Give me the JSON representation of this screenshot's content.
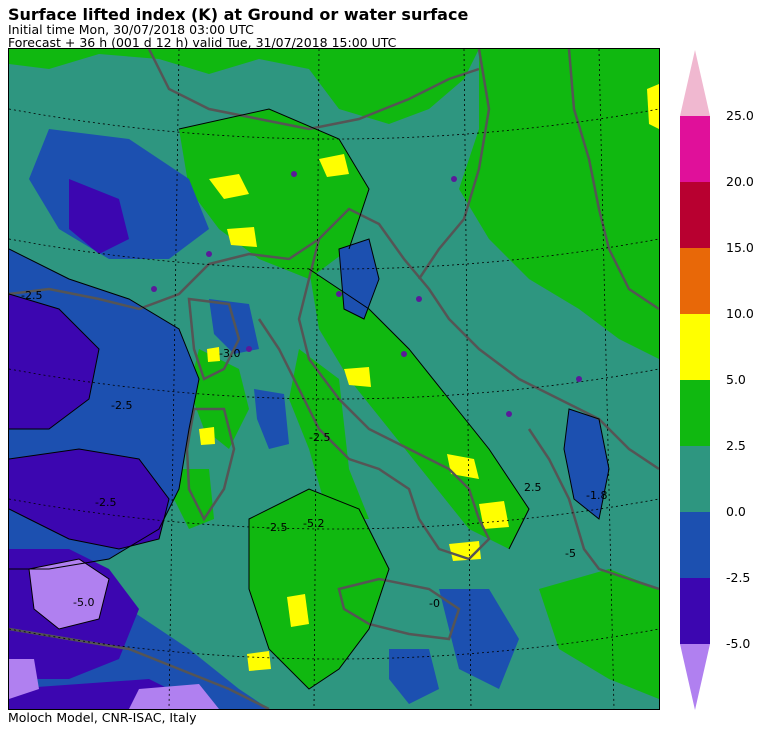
{
  "header": {
    "title": "Surface lifted index (K) at Ground or water surface",
    "initial_time": "Initial time  Mon, 30/07/2018  03:00 UTC",
    "forecast": "Forecast  +  36 h  (001 d 12 h)  valid Tue, 31/07/2018 15:00 UTC"
  },
  "footer": {
    "credit": "Moloch Model, CNR-ISAC, Italy"
  },
  "legend": {
    "bins": [
      {
        "label": "25.0",
        "color": "#f0b8d0"
      },
      {
        "label": "20.0",
        "color": "#e0109a"
      },
      {
        "label": "15.0",
        "color": "#b80030"
      },
      {
        "label": "10.0",
        "color": "#e86808"
      },
      {
        "label": "5.0",
        "color": "#ffff00"
      },
      {
        "label": "2.5",
        "color": "#10b810"
      },
      {
        "label": "0.0",
        "color": "#2e9680"
      },
      {
        "label": "-2.5",
        "color": "#1c50b0"
      },
      {
        "label": "-5.0",
        "color": "#3c06b0"
      },
      {
        "label": "",
        "color": "#b080f0"
      }
    ]
  },
  "map": {
    "contour_labels": [
      "-2.5",
      "-2.5",
      "-2.5",
      "-3.0",
      "-2.5",
      "-2.5",
      "-5.2",
      "-5.0",
      "-1.8",
      "2.5",
      "-5",
      "-0"
    ]
  }
}
